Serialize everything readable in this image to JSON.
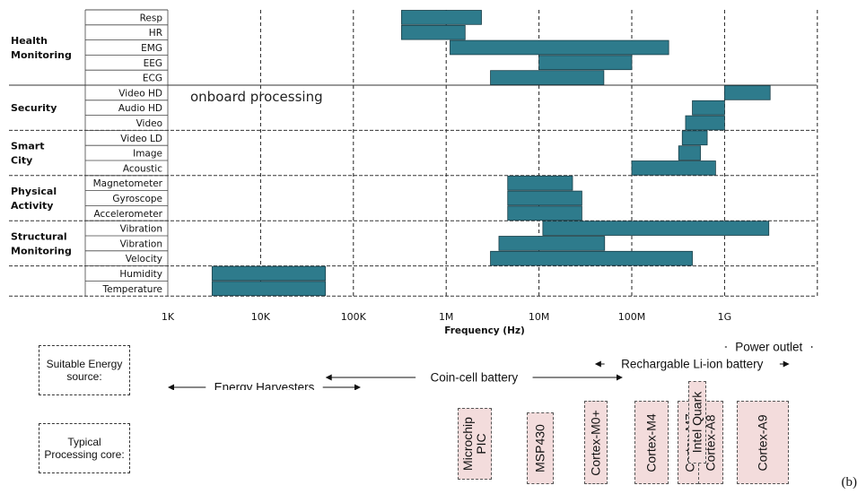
{
  "chart_data": {
    "type": "bar",
    "orientation": "horizontal",
    "bar_kind": "range",
    "x_scale": "log",
    "xlabel": "Frequency (Hz)",
    "xlim": [
      1000,
      10000000000
    ],
    "x_ticks": [
      {
        "value": 1000,
        "label": "1K"
      },
      {
        "value": 10000,
        "label": "10K"
      },
      {
        "value": 100000,
        "label": "100K"
      },
      {
        "value": 1000000,
        "label": "1M"
      },
      {
        "value": 10000000,
        "label": "10M"
      },
      {
        "value": 100000000,
        "label": "100M"
      },
      {
        "value": 1000000000,
        "label": "1G"
      }
    ],
    "bar_color": "#2e7b8c",
    "grid": "vertical dashed at each decade",
    "annotation": "onboard processing",
    "groups": [
      {
        "name": "Health Monitoring",
        "rows": [
          {
            "label": "Resp",
            "range": [
              330000,
              2400000
            ]
          },
          {
            "label": "HR",
            "range": [
              330000,
              1600000
            ]
          },
          {
            "label": "EMG",
            "range": [
              1100000,
              250000000
            ]
          },
          {
            "label": "EEG",
            "range": [
              10000000,
              100000000
            ]
          },
          {
            "label": "ECG",
            "range": [
              3000000,
              50000000
            ]
          }
        ]
      },
      {
        "name": "Security",
        "rows": [
          {
            "label": "Video HD",
            "range": [
              1000000000,
              3100000000
            ]
          },
          {
            "label": "Audio HD",
            "range": [
              450000000,
              1000000000
            ]
          },
          {
            "label": "Video",
            "range": [
              380000000,
              1000000000
            ]
          }
        ]
      },
      {
        "name": "Smart City",
        "rows": [
          {
            "label": "Video LD",
            "range": [
              350000000,
              650000000
            ]
          },
          {
            "label": "Image",
            "range": [
              320000000,
              550000000
            ]
          },
          {
            "label": "Acoustic",
            "range": [
              100000000,
              800000000
            ]
          }
        ]
      },
      {
        "name": "Physical Activity",
        "rows": [
          {
            "label": "Magnetometer",
            "range": [
              4600000,
              23000000
            ]
          },
          {
            "label": "Gyroscope",
            "range": [
              4600000,
              29000000
            ]
          },
          {
            "label": "Accelerometer",
            "range": [
              4600000,
              29000000
            ]
          }
        ]
      },
      {
        "name": "Structural Monitoring",
        "rows": [
          {
            "label": "Vibration",
            "range": [
              11000000,
              3000000000
            ]
          },
          {
            "label": "Vibration",
            "range": [
              3700000,
              51000000
            ]
          },
          {
            "label": "Velocity",
            "range": [
              3000000,
              450000000
            ]
          }
        ]
      },
      {
        "name": "",
        "rows": [
          {
            "label": "Humidity",
            "range": [
              3000,
              50000
            ]
          },
          {
            "label": "Temperature",
            "range": [
              3000,
              50000
            ]
          }
        ]
      }
    ]
  },
  "energy": {
    "label": "Suitable Energy source:",
    "ranges": [
      {
        "text": "Energy Harvesters",
        "from": 1000,
        "to": 120000
      },
      {
        "text": "Coin-cell battery",
        "from": 50000,
        "to": 80000000
      },
      {
        "text": "Rechargable Li-ion battery",
        "from": 40000000,
        "to": 5000000000
      },
      {
        "text": "Power outlet",
        "from": 1000000000,
        "to": 9000000000
      }
    ]
  },
  "cores": {
    "label": "Typical Processing core:",
    "items": [
      {
        "name": "Microchip PIC",
        "freq": 2000000
      },
      {
        "name": "MSP430",
        "freq": 10000000
      },
      {
        "name": "Cortex-M0+",
        "freq": 40000000
      },
      {
        "name": "Cortex-M4",
        "freq": 160000000
      },
      {
        "name": "Cortex-M7",
        "freq": 420000000
      },
      {
        "name": "Intel Quark",
        "freq": 500000000
      },
      {
        "name": "Cortex-A8",
        "freq": 700000000
      },
      {
        "name": "Cortex-A9",
        "freq": 2500000000
      }
    ]
  },
  "figure_tag": "(b)"
}
